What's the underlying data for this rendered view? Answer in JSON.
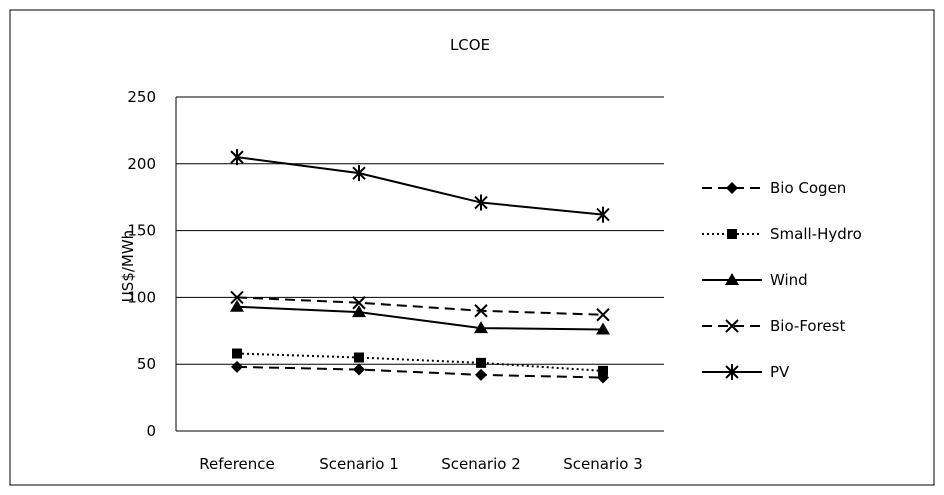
{
  "chart_data": {
    "type": "line",
    "title": "LCOE",
    "xlabel": "",
    "ylabel": "US$/MWh",
    "ylim": [
      0,
      250
    ],
    "yticks": [
      0,
      50,
      100,
      150,
      200,
      250
    ],
    "grid": "horizontal",
    "legend_position": "right",
    "categories": [
      "Reference",
      "Scenario 1",
      "Scenario 2",
      "Scenario 3"
    ],
    "series": [
      {
        "name": "Bio Cogen",
        "values": [
          48,
          46,
          42,
          40
        ],
        "line": "dashed",
        "marker": "diamond"
      },
      {
        "name": "Small-Hydro",
        "values": [
          58,
          55,
          51,
          45
        ],
        "line": "dotted",
        "marker": "square"
      },
      {
        "name": "Wind",
        "values": [
          93,
          89,
          77,
          76
        ],
        "line": "solid",
        "marker": "triangle"
      },
      {
        "name": "Bio-Forest",
        "values": [
          100,
          96,
          90,
          87
        ],
        "line": "dashed",
        "marker": "x"
      },
      {
        "name": "PV",
        "values": [
          205,
          193,
          171,
          162
        ],
        "line": "solid",
        "marker": "star"
      }
    ]
  }
}
